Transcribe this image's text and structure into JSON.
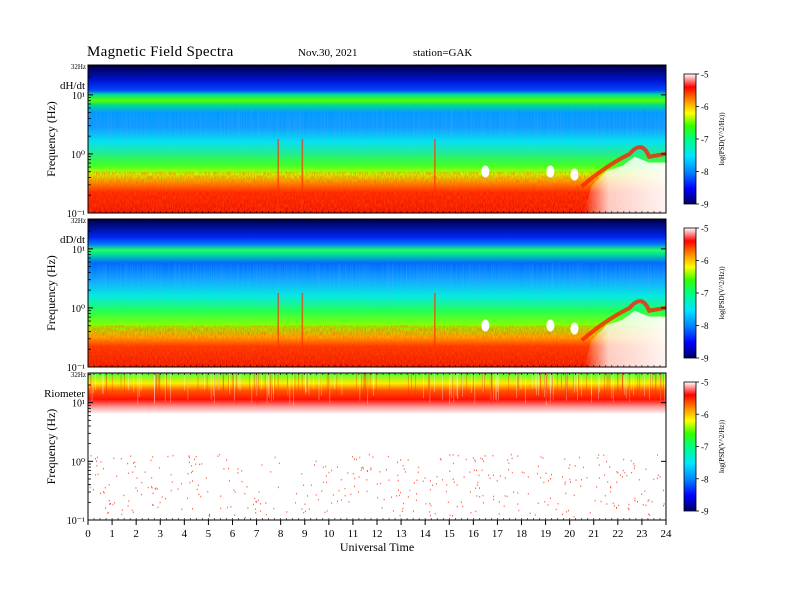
{
  "header": {
    "title": "Magnetic  Field  Spectra",
    "date": "Nov.30, 2021",
    "station": "station=GAK"
  },
  "chart_data": {
    "type": "heatmap",
    "xlabel": "Universal Time",
    "xlim": [
      0,
      24
    ],
    "x_ticks": [
      "0",
      "1",
      "2",
      "3",
      "4",
      "5",
      "6",
      "7",
      "8",
      "9",
      "10",
      "11",
      "12",
      "13",
      "14",
      "15",
      "16",
      "17",
      "18",
      "19",
      "20",
      "21",
      "22",
      "23",
      "24"
    ],
    "ylabel": "Frequency  (Hz)",
    "ylim_hz": [
      0.1,
      32
    ],
    "y_tick_labels": [
      "10⁻¹",
      "10⁰",
      "10¹"
    ],
    "y_top_label": "32Hz",
    "y_scale": "log",
    "colorbar": {
      "label": "log(PSD(V^2/Hz))",
      "range": [
        -9,
        -5
      ],
      "ticks": [
        "-5",
        "-6",
        "-7",
        "-8",
        "-9"
      ],
      "colors": [
        "#000066",
        "#0000ff",
        "#0088ff",
        "#00e5ff",
        "#00ff80",
        "#33ff00",
        "#ffff00",
        "#ff8800",
        "#ff0000",
        "#ffffff"
      ]
    },
    "panels": [
      {
        "name": "dH/dt"
      },
      {
        "name": "dD/dt"
      },
      {
        "name": "Riometer"
      }
    ]
  }
}
